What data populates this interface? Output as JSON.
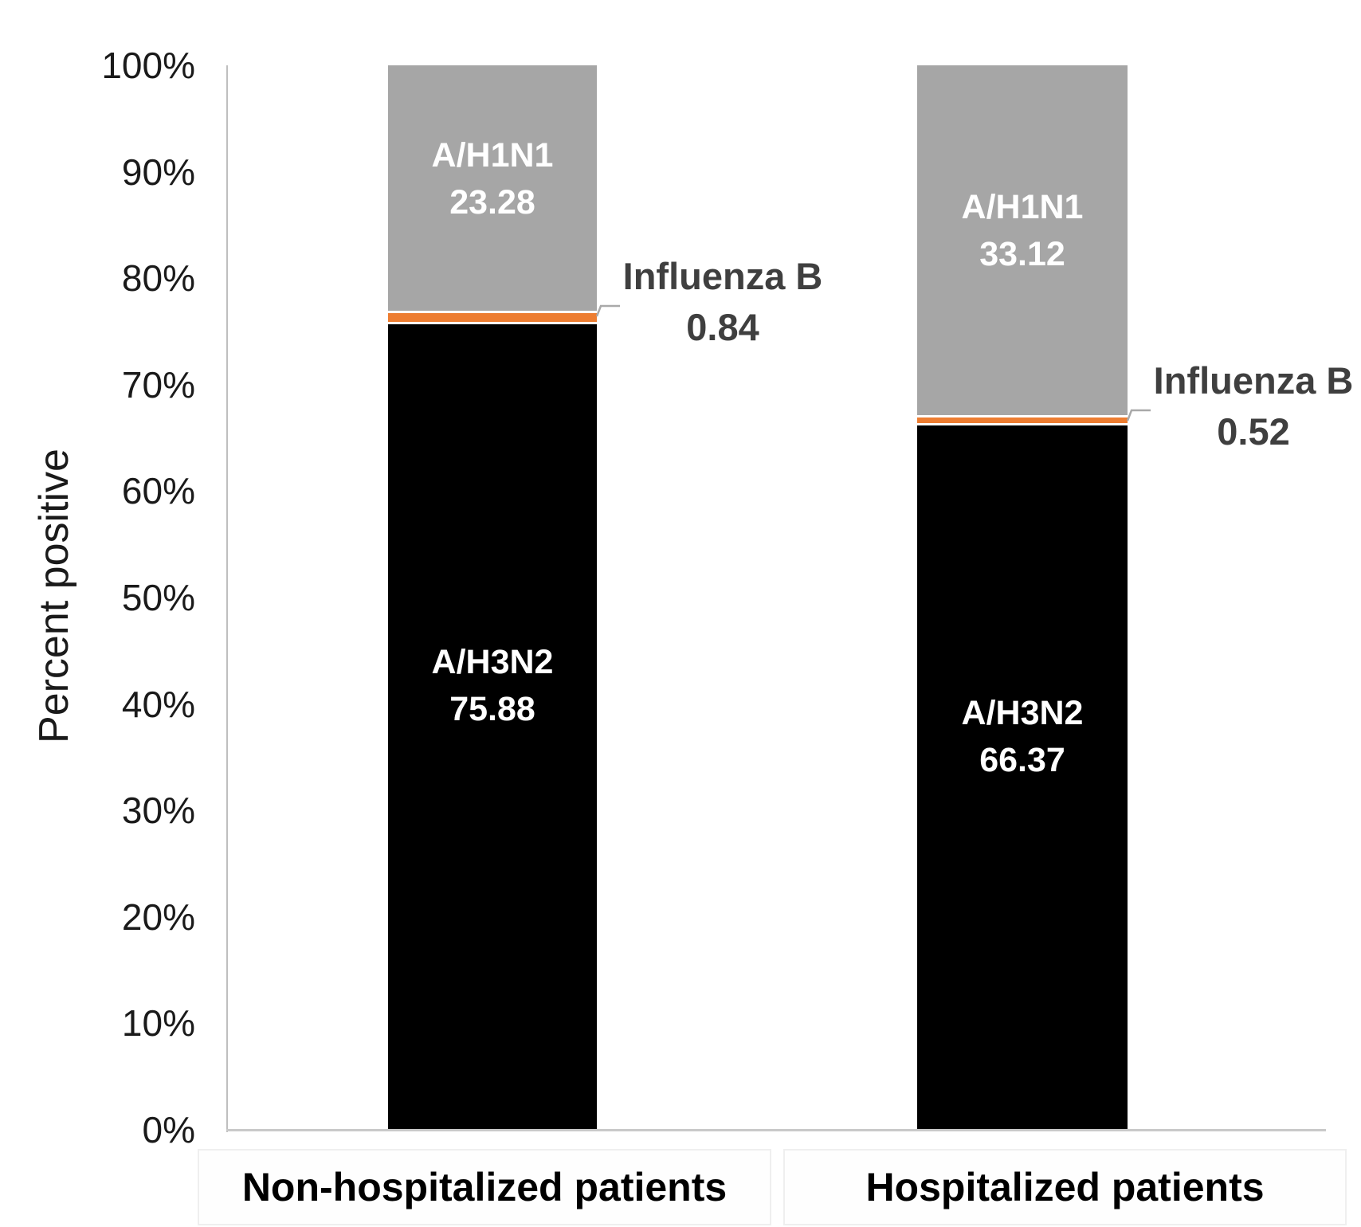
{
  "chart_data": {
    "type": "bar",
    "stacked": true,
    "orientation": "vertical",
    "title": "",
    "xlabel": "",
    "ylabel": "Percent positive",
    "ylim": [
      0,
      100
    ],
    "ytick_step": 10,
    "ytick_suffix": "%",
    "grid": false,
    "legend": "none (labels drawn on segments and as callouts)",
    "axis_line_color": "#bfbfbf",
    "categories": [
      "Non-hospitalized patients",
      "Hospitalized patients"
    ],
    "series": [
      {
        "name": "A/H3N2",
        "color": "#000000",
        "label_color": "#ffffff",
        "label_position": "inside",
        "values": [
          75.88,
          66.37
        ]
      },
      {
        "name": "Influenza B",
        "color": "#ED7D31",
        "label_color": "#3f3f3f",
        "label_position": "outside-right-callout",
        "values": [
          0.84,
          0.52
        ]
      },
      {
        "name": "A/H1N1",
        "color": "#A6A6A6",
        "label_color": "#ffffff",
        "label_position": "inside",
        "values": [
          23.28,
          33.12
        ]
      }
    ]
  }
}
